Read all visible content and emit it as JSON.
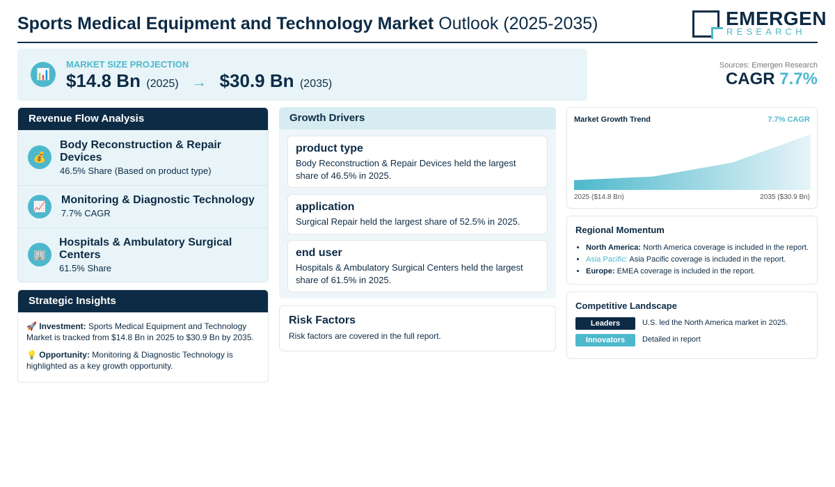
{
  "header": {
    "title_bold": "Sports Medical Equipment and Technology Market",
    "title_rest": "Outlook (2025-2035)",
    "logo_name": "EMERGEN",
    "logo_sub": "RESEARCH"
  },
  "projection": {
    "icon": "bar-chart-icon",
    "label": "MARKET SIZE PROJECTION",
    "start_value": "$14.8 Bn",
    "start_year": "(2025)",
    "arrow": "→",
    "end_value": "$30.9 Bn",
    "end_year": "(2035)"
  },
  "summary": {
    "sources": "Sources: Emergen Research",
    "cagr_label": "CAGR",
    "cagr_value": "7.7%"
  },
  "revenue_flow": {
    "title": "Revenue Flow Analysis",
    "items": [
      {
        "icon": "money-bag-icon",
        "title": "Body Reconstruction & Repair Devices",
        "sub": "46.5% Share (Based on product type)"
      },
      {
        "icon": "chart-increasing-icon",
        "title": "Monitoring & Diagnostic Technology",
        "sub": "7.7% CAGR"
      },
      {
        "icon": "office-building-icon",
        "title": "Hospitals & Ambulatory Surgical Centers",
        "sub": "61.5% Share"
      }
    ]
  },
  "strategic": {
    "title": "Strategic Insights",
    "investment_label": "Investment:",
    "investment_text": "Sports Medical Equipment and Technology Market is tracked from $14.8 Bn in 2025 to $30.9 Bn by 2035.",
    "opportunity_label": "Opportunity:",
    "opportunity_text": "Monitoring & Diagnostic Technology is highlighted as a key growth opportunity."
  },
  "drivers": {
    "title": "Growth Drivers",
    "cards": [
      {
        "title": "product type",
        "text": "Body Reconstruction & Repair Devices held the largest share of 46.5% in 2025."
      },
      {
        "title": "application",
        "text": "Surgical Repair held the largest share of 52.5% in 2025."
      },
      {
        "title": "end user",
        "text": "Hospitals & Ambulatory Surgical Centers held the largest share of 61.5% in 2025."
      }
    ]
  },
  "risk": {
    "title": "Risk Factors",
    "text": "Risk factors are covered in the full report."
  },
  "trend": {
    "title": "Market Growth Trend",
    "cagr": "7.7% CAGR",
    "left_label": "2025 ($14.8 Bn)",
    "right_label": "2035 ($30.9 Bn)",
    "gradient_start": "#4db8cc",
    "gradient_end": "#e6f4f8",
    "profile": [
      0.0,
      0.08,
      0.38,
      1.0
    ]
  },
  "regional": {
    "title": "Regional Momentum",
    "items": [
      {
        "name": "North America:",
        "text": "North America coverage is included in the report."
      },
      {
        "name": "Asia Pacific:",
        "text": "Asia Pacific coverage is included in the report."
      },
      {
        "name": "Europe:",
        "text": "EMEA coverage is included in the report."
      }
    ]
  },
  "competitive": {
    "title": "Competitive Landscape",
    "rows": [
      {
        "tag": "Leaders",
        "text": "U.S. led the North America market in 2025.",
        "color": "#0d2b45"
      },
      {
        "tag": "Innovators",
        "text": "Detailed in report",
        "color": "#4db8cc"
      }
    ]
  },
  "colors": {
    "navy": "#0d2b45",
    "teal": "#4db8cc",
    "light": "#e8f4f8"
  }
}
